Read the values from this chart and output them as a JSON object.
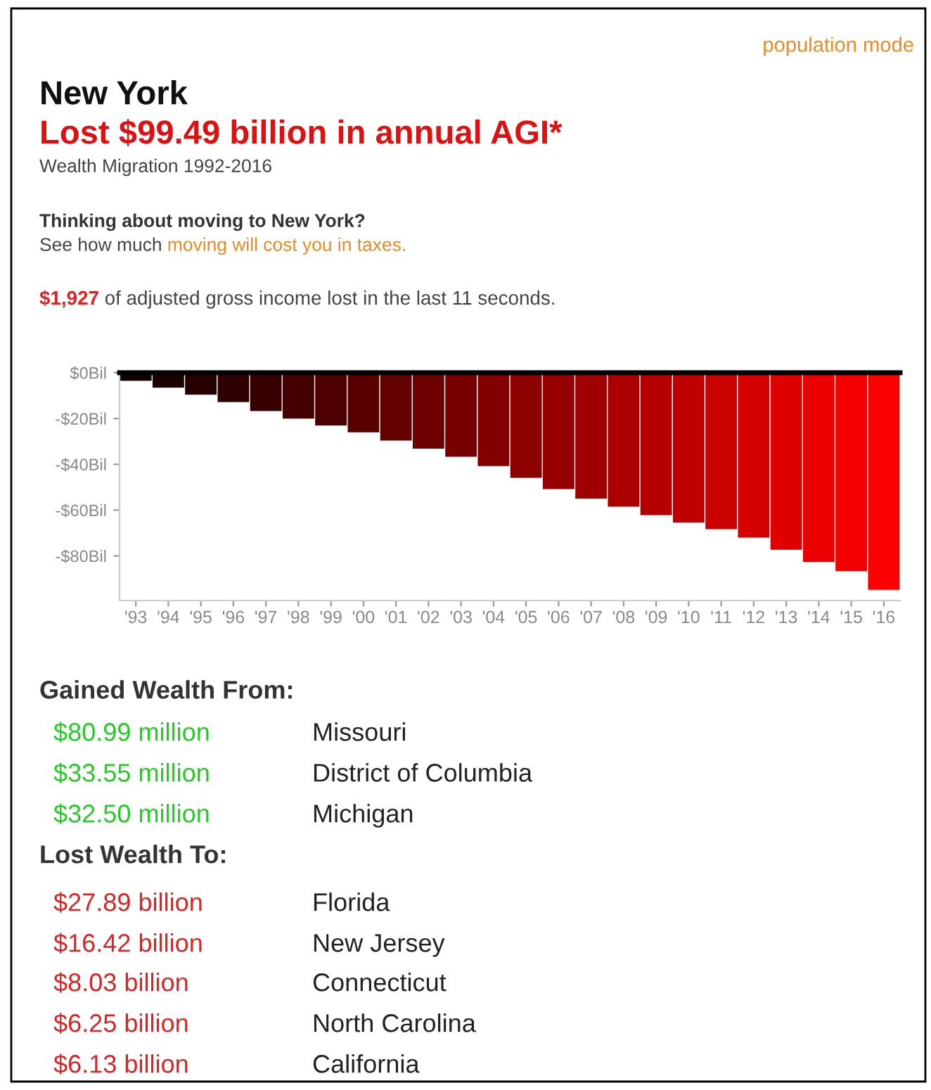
{
  "chart_data": {
    "type": "bar",
    "title": "New York",
    "subtitle": "Lost $99.49 billion in annual AGI*",
    "annotations": [
      "population mode",
      "Wealth Migration 1992-2016",
      "Thinking about moving to New York?",
      "See how much ",
      "moving will cost you in taxes.",
      "$1,927",
      " of adjusted gross income lost in the last 11 seconds.",
      "Gained Wealth From:",
      "$80.99 million",
      "Missouri",
      "$33.55 million",
      "District of Columbia",
      "$32.50 million",
      "Michigan",
      "Lost Wealth To:",
      "$27.89 billion",
      "Florida",
      "$16.42 billion",
      "New Jersey",
      "$8.03 billion",
      "Connecticut",
      "$6.25 billion",
      "North Carolina",
      "$6.13 billion",
      "California"
    ],
    "categories": [
      "'93",
      "'94",
      "'95",
      "'96",
      "'97",
      "'98",
      "'99",
      "'00",
      "'01",
      "'02",
      "'03",
      "'04",
      "'05",
      "'06",
      "'07",
      "'08",
      "'09",
      "'10",
      "'11",
      "'12",
      "'13",
      "'14",
      "'15",
      "'16"
    ],
    "values": [
      -3.5,
      -6.5,
      -9.6,
      -12.8,
      -16.7,
      -20,
      -23,
      -26,
      -29.6,
      -33.2,
      -36.7,
      -40.8,
      -45.9,
      -50.8,
      -55,
      -58.5,
      -62.2,
      -65.4,
      -68.3,
      -72,
      -77.3,
      -82.6,
      -86.7,
      -94.8
    ],
    "colors": [
      "#100000",
      "#1a0000",
      "#250000",
      "#2f0000",
      "#390000",
      "#440000",
      "#4e0000",
      "#590000",
      "#630000",
      "#6d0000",
      "#780000",
      "#820000",
      "#8c0000",
      "#970000",
      "#a10000",
      "#ac0000",
      "#b60000",
      "#c00000",
      "#cb0000",
      "#d50000",
      "#df0000",
      "#ea0000",
      "#f40000",
      "#ff0000"
    ],
    "ylim": [
      -99.5,
      0
    ],
    "yticks": [
      {
        "value": 0,
        "label": "$0Bil"
      },
      {
        "value": -20,
        "label": "-$20Bil"
      },
      {
        "value": -40,
        "label": "-$40Bil"
      },
      {
        "value": -60,
        "label": "-$60Bil"
      },
      {
        "value": -80,
        "label": "-$80Bil"
      }
    ],
    "grid": false
  }
}
